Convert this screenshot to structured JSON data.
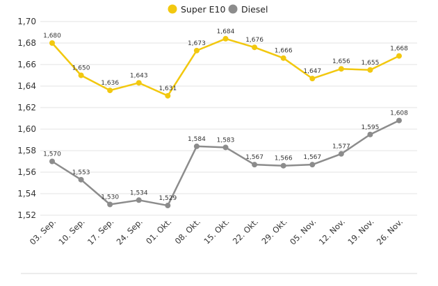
{
  "chart_data": {
    "type": "line",
    "categories": [
      "03. Sep.",
      "10. Sep.",
      "17. Sep.",
      "24. Sep.",
      "01. Okt.",
      "08. Okt.",
      "15. Okt.",
      "22. Okt.",
      "29. Okt.",
      "05. Nov.",
      "12. Nov.",
      "19. Nov.",
      "26. Nov."
    ],
    "series": [
      {
        "name": "Super E10",
        "color": "#f2c80f",
        "values": [
          1.68,
          1.65,
          1.636,
          1.643,
          1.631,
          1.673,
          1.684,
          1.676,
          1.666,
          1.647,
          1.656,
          1.655,
          1.668
        ],
        "labels": [
          "1,680",
          "1,650",
          "1,636",
          "1,643",
          "1,631",
          "1,673",
          "1,684",
          "1,676",
          "1,666",
          "1,647",
          "1,656",
          "1,655",
          "1,668"
        ]
      },
      {
        "name": "Diesel",
        "color": "#8c8c8c",
        "values": [
          1.57,
          1.553,
          1.53,
          1.534,
          1.529,
          1.584,
          1.583,
          1.567,
          1.566,
          1.567,
          1.577,
          1.595,
          1.608
        ],
        "labels": [
          "1,570",
          "1,553",
          "1,530",
          "1,534",
          "1,529",
          "1,584",
          "1,583",
          "1,567",
          "1,566",
          "1,567",
          "1,577",
          "1,595",
          "1,608"
        ]
      }
    ],
    "yticks": [
      1.52,
      1.54,
      1.56,
      1.58,
      1.6,
      1.62,
      1.64,
      1.66,
      1.68,
      1.7
    ],
    "ytick_labels": [
      "1,52",
      "1,54",
      "1,56",
      "1,58",
      "1,60",
      "1,62",
      "1,64",
      "1,66",
      "1,68",
      "1,70"
    ],
    "ylim": [
      1.52,
      1.7
    ],
    "grid": true,
    "legend_position": "top-center"
  }
}
